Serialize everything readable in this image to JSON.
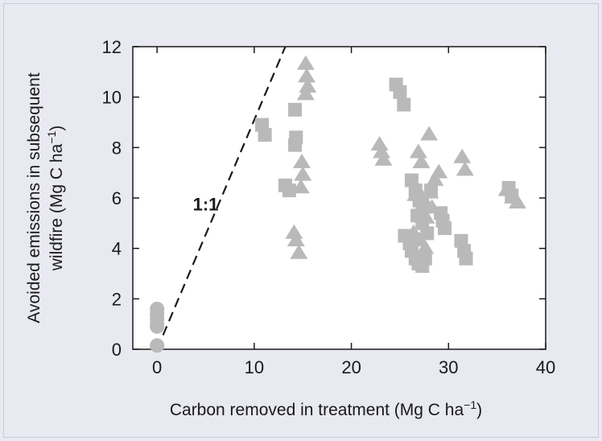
{
  "chart_data": {
    "type": "scatter",
    "xlabel": "Carbon removed in treatment (Mg C ha",
    "xlabel_sup": "−1",
    "xlabel_close": ")",
    "ylabel_line1": "Avoided emissions in subsequent",
    "ylabel_line2": "wildfire (Mg C ha",
    "ylabel_sup": "−1",
    "ylabel_close": ")",
    "xlim": [
      -2.5,
      40
    ],
    "ylim": [
      0,
      12
    ],
    "xticks": [
      0,
      10,
      20,
      30,
      40
    ],
    "yticks": [
      0,
      2,
      4,
      6,
      8,
      10,
      12
    ],
    "grid": false,
    "marker_color": "#b9b9b9",
    "reference_line": {
      "label": "1:1",
      "x": [
        0,
        13.2
      ],
      "y": [
        0,
        12
      ],
      "style": "dashed",
      "color": "#1a1a1a"
    },
    "series": [
      {
        "marker": "circle",
        "points": [
          [
            0,
            1.6
          ],
          [
            0,
            1.4
          ],
          [
            0,
            1.2
          ],
          [
            0,
            1.0
          ],
          [
            0,
            0.9
          ],
          [
            0,
            0.15
          ]
        ]
      },
      {
        "marker": "square",
        "points": [
          [
            10.8,
            8.9
          ],
          [
            11.1,
            8.5
          ],
          [
            13.2,
            6.5
          ],
          [
            13.6,
            6.3
          ],
          [
            14.2,
            9.5
          ],
          [
            14.3,
            8.4
          ],
          [
            14.2,
            8.1
          ],
          [
            24.6,
            10.5
          ],
          [
            25.0,
            10.2
          ],
          [
            25.4,
            9.7
          ],
          [
            25.5,
            4.5
          ],
          [
            26.0,
            4.2
          ],
          [
            26.2,
            3.9
          ],
          [
            26.6,
            3.6
          ],
          [
            26.9,
            3.4
          ],
          [
            27.3,
            3.3
          ],
          [
            27.6,
            3.6
          ],
          [
            26.2,
            6.7
          ],
          [
            26.6,
            6.3
          ],
          [
            27.0,
            5.9
          ],
          [
            27.3,
            5.7
          ],
          [
            26.8,
            5.3
          ],
          [
            27.3,
            5.0
          ],
          [
            27.8,
            4.6
          ],
          [
            28.2,
            6.3
          ],
          [
            29.2,
            5.4
          ],
          [
            29.4,
            5.1
          ],
          [
            29.6,
            4.8
          ],
          [
            31.3,
            4.3
          ],
          [
            31.6,
            3.9
          ],
          [
            31.8,
            3.6
          ],
          [
            36.2,
            6.4
          ],
          [
            36.5,
            6.1
          ]
        ]
      },
      {
        "marker": "triangle",
        "points": [
          [
            14.1,
            4.6
          ],
          [
            14.3,
            4.3
          ],
          [
            14.6,
            3.8
          ],
          [
            14.9,
            7.4
          ],
          [
            15.0,
            6.9
          ],
          [
            14.8,
            6.4
          ],
          [
            15.3,
            11.3
          ],
          [
            15.4,
            10.8
          ],
          [
            15.5,
            10.4
          ],
          [
            15.3,
            10.1
          ],
          [
            22.9,
            8.1
          ],
          [
            23.1,
            7.8
          ],
          [
            23.3,
            7.5
          ],
          [
            26.9,
            7.8
          ],
          [
            27.2,
            7.4
          ],
          [
            28.0,
            8.5
          ],
          [
            26.6,
            6.1
          ],
          [
            27.3,
            6.0
          ],
          [
            28.1,
            6.2
          ],
          [
            28.6,
            6.7
          ],
          [
            29.0,
            7.0
          ],
          [
            28.3,
            5.6
          ],
          [
            27.7,
            5.2
          ],
          [
            26.4,
            4.6
          ],
          [
            27.0,
            4.3
          ],
          [
            27.6,
            4.0
          ],
          [
            31.4,
            7.6
          ],
          [
            31.7,
            7.1
          ],
          [
            36.0,
            6.3
          ],
          [
            36.6,
            6.0
          ],
          [
            37.1,
            5.8
          ]
        ]
      }
    ]
  }
}
